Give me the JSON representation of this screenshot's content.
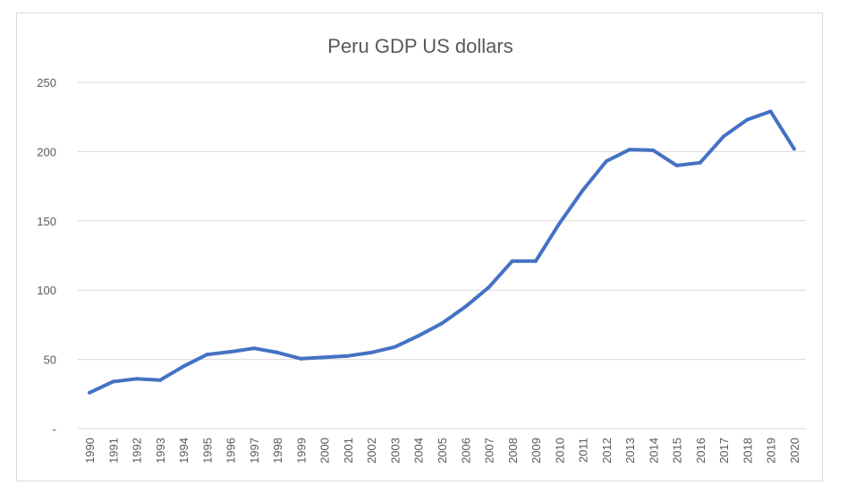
{
  "chart_data": {
    "type": "line",
    "title": "Peru GDP US dollars",
    "xlabel": "",
    "ylabel": "",
    "ylim": [
      0,
      250
    ],
    "yticks": [
      0,
      50,
      100,
      150,
      200,
      250
    ],
    "ytick_labels": [
      "-",
      "50",
      "100",
      "150",
      "200",
      "250"
    ],
    "grid": true,
    "legend": "none",
    "categories": [
      "1990",
      "1991",
      "1992",
      "1993",
      "1994",
      "1995",
      "1996",
      "1997",
      "1998",
      "1999",
      "2000",
      "2001",
      "2002",
      "2003",
      "2004",
      "2005",
      "2006",
      "2007",
      "2008",
      "2009",
      "2010",
      "2011",
      "2012",
      "2013",
      "2014",
      "2015",
      "2016",
      "2017",
      "2018",
      "2019",
      "2020"
    ],
    "series": [
      {
        "color": "#4472c4",
        "values": [
          26,
          34,
          36,
          35,
          45,
          53.5,
          55.5,
          58,
          55,
          50.5,
          51.5,
          52.5,
          55,
          59,
          67,
          76,
          88,
          102,
          121,
          121,
          148,
          172,
          193,
          201.5,
          201,
          190,
          192,
          211,
          223,
          229,
          202
        ]
      }
    ]
  }
}
